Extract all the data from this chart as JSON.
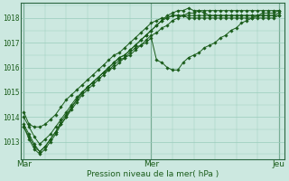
{
  "bg_color": "#cce8e0",
  "grid_color": "#99ccbb",
  "line_color": "#1a5c1a",
  "marker_color": "#1a5c1a",
  "title": "Pression niveau de la mer( hPa )",
  "xtick_labels": [
    "Mar",
    "Mer",
    "Jeu"
  ],
  "xtick_positions": [
    0,
    48,
    96
  ],
  "ytick_labels": [
    "1013",
    "1014",
    "1015",
    "1016",
    "1017",
    "1018"
  ],
  "ylim": [
    1012.3,
    1018.6
  ],
  "xlim": [
    -1,
    98
  ],
  "series": [
    {
      "x": [
        0,
        2,
        4,
        6,
        8,
        10,
        12,
        14,
        16,
        18,
        20,
        22,
        24,
        26,
        28,
        30,
        32,
        34,
        36,
        38,
        40,
        42,
        44,
        46,
        48,
        50,
        52,
        54,
        56,
        58,
        60,
        62,
        64,
        66,
        68,
        70,
        72,
        74,
        76,
        78,
        80,
        82,
        84,
        86,
        88,
        90,
        92,
        94,
        96
      ],
      "y": [
        1014.2,
        1013.7,
        1013.6,
        1013.6,
        1013.7,
        1013.9,
        1014.1,
        1014.4,
        1014.7,
        1014.9,
        1015.1,
        1015.3,
        1015.5,
        1015.7,
        1015.9,
        1016.1,
        1016.3,
        1016.5,
        1016.6,
        1016.8,
        1017.0,
        1017.2,
        1017.4,
        1017.6,
        1017.8,
        1017.9,
        1018.0,
        1018.0,
        1018.1,
        1018.1,
        1018.1,
        1018.1,
        1018.1,
        1018.1,
        1018.1,
        1018.1,
        1018.1,
        1018.1,
        1018.1,
        1018.1,
        1018.1,
        1018.1,
        1018.1,
        1018.1,
        1018.1,
        1018.1,
        1018.1,
        1018.1,
        1018.1
      ]
    },
    {
      "x": [
        0,
        2,
        4,
        6,
        8,
        10,
        12,
        14,
        16,
        18,
        20,
        22,
        24,
        26,
        28,
        30,
        32,
        34,
        36,
        38,
        40,
        42,
        44,
        46,
        48,
        50,
        52,
        54,
        56,
        58,
        60,
        62,
        64,
        66,
        68,
        70,
        72,
        74,
        76,
        78,
        80,
        82,
        84,
        86,
        88,
        90,
        92,
        94,
        96
      ],
      "y": [
        1014.0,
        1013.6,
        1013.2,
        1012.9,
        1013.1,
        1013.3,
        1013.6,
        1013.9,
        1014.2,
        1014.5,
        1014.8,
        1015.0,
        1015.2,
        1015.4,
        1015.6,
        1015.8,
        1016.0,
        1016.2,
        1016.4,
        1016.5,
        1016.7,
        1016.9,
        1017.1,
        1017.3,
        1017.5,
        1017.7,
        1017.9,
        1018.0,
        1018.1,
        1018.1,
        1018.1,
        1018.0,
        1018.0,
        1018.0,
        1018.0,
        1018.0,
        1018.0,
        1018.0,
        1018.0,
        1018.0,
        1018.0,
        1018.0,
        1018.0,
        1018.0,
        1018.0,
        1018.0,
        1018.0,
        1018.0,
        1018.1
      ]
    },
    {
      "x": [
        0,
        2,
        4,
        6,
        8,
        10,
        12,
        14,
        16,
        18,
        20,
        22,
        24,
        26,
        28,
        30,
        32,
        34,
        36,
        38,
        40,
        42,
        44,
        46,
        48,
        50,
        52,
        54,
        56,
        58,
        60,
        62,
        64,
        66,
        68,
        70,
        72,
        74,
        76,
        78,
        80,
        82,
        84,
        86,
        88,
        90,
        92,
        94,
        96
      ],
      "y": [
        1013.7,
        1013.3,
        1012.9,
        1012.6,
        1012.8,
        1013.1,
        1013.4,
        1013.7,
        1014.0,
        1014.3,
        1014.6,
        1014.9,
        1015.1,
        1015.3,
        1015.5,
        1015.7,
        1015.9,
        1016.0,
        1016.2,
        1016.4,
        1016.5,
        1016.7,
        1016.9,
        1017.0,
        1017.2,
        1016.3,
        1016.2,
        1016.0,
        1015.9,
        1015.9,
        1016.2,
        1016.4,
        1016.5,
        1016.6,
        1016.8,
        1016.9,
        1017.0,
        1017.2,
        1017.3,
        1017.5,
        1017.6,
        1017.8,
        1017.9,
        1018.0,
        1018.1,
        1018.2,
        1018.2,
        1018.2,
        1018.3
      ]
    },
    {
      "x": [
        0,
        2,
        4,
        6,
        8,
        10,
        12,
        14,
        16,
        18,
        20,
        22,
        24,
        26,
        28,
        30,
        32,
        34,
        36,
        38,
        40,
        42,
        44,
        46,
        48,
        50,
        52,
        54,
        56,
        58,
        60,
        62,
        64,
        66,
        68,
        70,
        72,
        74,
        76,
        78,
        80,
        82,
        84,
        86,
        88,
        90,
        92,
        94,
        96
      ],
      "y": [
        1013.6,
        1013.2,
        1012.8,
        1012.6,
        1012.8,
        1013.1,
        1013.4,
        1013.8,
        1014.1,
        1014.4,
        1014.7,
        1015.0,
        1015.2,
        1015.4,
        1015.6,
        1015.8,
        1015.9,
        1016.1,
        1016.3,
        1016.4,
        1016.6,
        1016.8,
        1016.9,
        1017.1,
        1017.3,
        1017.4,
        1017.6,
        1017.7,
        1017.9,
        1018.0,
        1018.1,
        1018.2,
        1018.2,
        1018.3,
        1018.3,
        1018.3,
        1018.3,
        1018.3,
        1018.3,
        1018.3,
        1018.3,
        1018.3,
        1018.3,
        1018.3,
        1018.3,
        1018.3,
        1018.3,
        1018.3,
        1018.3
      ]
    },
    {
      "x": [
        0,
        2,
        4,
        6,
        8,
        10,
        12,
        14,
        16,
        18,
        20,
        22,
        24,
        26,
        28,
        30,
        32,
        34,
        36,
        38,
        40,
        42,
        44,
        46,
        48,
        50,
        52,
        54,
        56,
        58,
        60,
        62,
        64,
        66,
        68,
        70,
        72,
        74,
        76,
        78,
        80,
        82,
        84,
        86,
        88,
        90,
        92,
        94,
        96
      ],
      "y": [
        1013.6,
        1013.1,
        1012.7,
        1012.5,
        1012.7,
        1013.0,
        1013.3,
        1013.7,
        1014.0,
        1014.4,
        1014.7,
        1015.0,
        1015.2,
        1015.4,
        1015.6,
        1015.8,
        1016.0,
        1016.2,
        1016.4,
        1016.5,
        1016.7,
        1016.9,
        1017.1,
        1017.3,
        1017.5,
        1017.7,
        1017.9,
        1018.1,
        1018.2,
        1018.3,
        1018.3,
        1018.4,
        1018.3,
        1018.3,
        1018.2,
        1018.1,
        1018.1,
        1018.1,
        1018.1,
        1018.1,
        1018.1,
        1018.1,
        1018.1,
        1018.1,
        1018.1,
        1018.1,
        1018.1,
        1018.1,
        1018.2
      ]
    }
  ]
}
